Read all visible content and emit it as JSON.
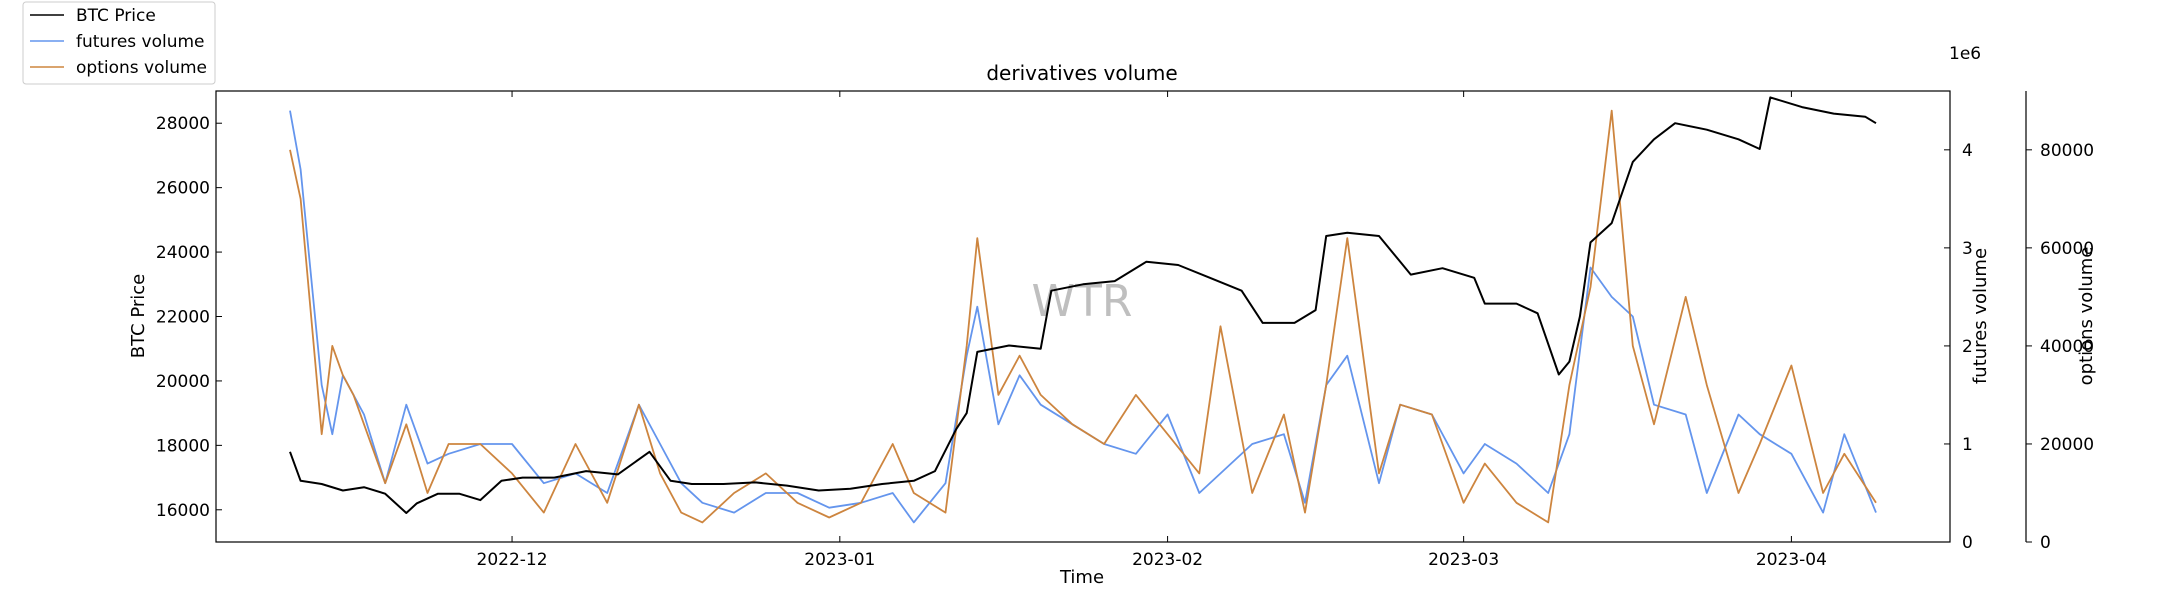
{
  "chart_data": {
    "type": "line",
    "title": "derivatives volume",
    "xlabel": "Time",
    "x_ticks": [
      "2022-12",
      "2023-01",
      "2023-02",
      "2023-03",
      "2023-04"
    ],
    "x_range": [
      "2022-11-03",
      "2023-04-16"
    ],
    "watermark": "WTR",
    "axes": {
      "price": {
        "label": "BTC Price",
        "ylim": [
          15000,
          29000
        ],
        "ticks": [
          16000,
          18000,
          20000,
          22000,
          24000,
          26000,
          28000
        ]
      },
      "futures": {
        "label": "futures volume",
        "ylim": [
          0,
          4600000
        ],
        "ticks": [
          0,
          1,
          2,
          3,
          4
        ],
        "scale_label": "1e6"
      },
      "options": {
        "label": "options volume",
        "ylim": [
          0,
          92000
        ],
        "ticks": [
          0,
          20000,
          40000,
          60000,
          80000
        ]
      }
    },
    "series": [
      {
        "name": "BTC Price",
        "axis": "price",
        "color": "#000000",
        "x": [
          "2022-11-10",
          "2022-11-11",
          "2022-11-13",
          "2022-11-15",
          "2022-11-17",
          "2022-11-19",
          "2022-11-21",
          "2022-11-22",
          "2022-11-24",
          "2022-11-26",
          "2022-11-28",
          "2022-11-30",
          "2022-12-02",
          "2022-12-05",
          "2022-12-08",
          "2022-12-11",
          "2022-12-14",
          "2022-12-16",
          "2022-12-18",
          "2022-12-21",
          "2022-12-24",
          "2022-12-27",
          "2022-12-30",
          "2023-01-02",
          "2023-01-05",
          "2023-01-08",
          "2023-01-10",
          "2023-01-12",
          "2023-01-13",
          "2023-01-14",
          "2023-01-17",
          "2023-01-20",
          "2023-01-21",
          "2023-01-24",
          "2023-01-27",
          "2023-01-30",
          "2023-02-02",
          "2023-02-05",
          "2023-02-08",
          "2023-02-10",
          "2023-02-13",
          "2023-02-15",
          "2023-02-16",
          "2023-02-18",
          "2023-02-21",
          "2023-02-24",
          "2023-02-27",
          "2023-03-02",
          "2023-03-03",
          "2023-03-06",
          "2023-03-08",
          "2023-03-10",
          "2023-03-11",
          "2023-03-12",
          "2023-03-13",
          "2023-03-15",
          "2023-03-17",
          "2023-03-19",
          "2023-03-21",
          "2023-03-24",
          "2023-03-27",
          "2023-03-29",
          "2023-03-30",
          "2023-04-02",
          "2023-04-05",
          "2023-04-08",
          "2023-04-09"
        ],
        "values": [
          17800,
          16900,
          16800,
          16600,
          16700,
          16500,
          15900,
          16200,
          16500,
          16500,
          16300,
          16900,
          17000,
          17000,
          17200,
          17100,
          17800,
          16900,
          16800,
          16800,
          16850,
          16750,
          16600,
          16650,
          16800,
          16900,
          17200,
          18500,
          19000,
          20900,
          21100,
          21000,
          22800,
          23000,
          23100,
          23700,
          23600,
          23200,
          22800,
          21800,
          21800,
          22200,
          24500,
          24600,
          24500,
          23300,
          23500,
          23200,
          22400,
          22400,
          22100,
          20200,
          20600,
          22000,
          24300,
          24900,
          26800,
          27500,
          28000,
          27800,
          27500,
          27200,
          28800,
          28500,
          28300,
          28200,
          28000
        ]
      },
      {
        "name": "futures volume",
        "axis": "futures",
        "color": "#6495ED",
        "x": [
          "2022-11-10",
          "2022-11-11",
          "2022-11-13",
          "2022-11-14",
          "2022-11-15",
          "2022-11-16",
          "2022-11-17",
          "2022-11-19",
          "2022-11-21",
          "2022-11-23",
          "2022-11-25",
          "2022-11-28",
          "2022-12-01",
          "2022-12-04",
          "2022-12-07",
          "2022-12-10",
          "2022-12-13",
          "2022-12-15",
          "2022-12-17",
          "2022-12-19",
          "2022-12-22",
          "2022-12-25",
          "2022-12-28",
          "2022-12-31",
          "2023-01-03",
          "2023-01-06",
          "2023-01-08",
          "2023-01-11",
          "2023-01-13",
          "2023-01-14",
          "2023-01-16",
          "2023-01-18",
          "2023-01-20",
          "2023-01-23",
          "2023-01-26",
          "2023-01-29",
          "2023-02-01",
          "2023-02-04",
          "2023-02-06",
          "2023-02-09",
          "2023-02-12",
          "2023-02-14",
          "2023-02-16",
          "2023-02-18",
          "2023-02-21",
          "2023-02-23",
          "2023-02-26",
          "2023-03-01",
          "2023-03-03",
          "2023-03-06",
          "2023-03-09",
          "2023-03-11",
          "2023-03-13",
          "2023-03-15",
          "2023-03-17",
          "2023-03-19",
          "2023-03-22",
          "2023-03-24",
          "2023-03-27",
          "2023-03-29",
          "2023-04-01",
          "2023-04-04",
          "2023-04-06",
          "2023-04-09"
        ],
        "values": [
          4400000,
          3800000,
          1600000,
          1100000,
          1700000,
          1500000,
          1300000,
          600000,
          1400000,
          800000,
          900000,
          1000000,
          1000000,
          600000,
          700000,
          500000,
          1400000,
          1000000,
          600000,
          400000,
          300000,
          500000,
          500000,
          350000,
          400000,
          500000,
          200000,
          600000,
          1900000,
          2400000,
          1200000,
          1700000,
          1400000,
          1200000,
          1000000,
          900000,
          1300000,
          500000,
          700000,
          1000000,
          1100000,
          400000,
          1600000,
          1900000,
          600000,
          1400000,
          1300000,
          700000,
          1000000,
          800000,
          500000,
          1100000,
          2800000,
          2500000,
          2300000,
          1400000,
          1300000,
          500000,
          1300000,
          1100000,
          900000,
          300000,
          1100000,
          300000
        ]
      },
      {
        "name": "options volume",
        "axis": "options",
        "color": "#CD853F",
        "x": [
          "2022-11-10",
          "2022-11-11",
          "2022-11-13",
          "2022-11-14",
          "2022-11-15",
          "2022-11-16",
          "2022-11-17",
          "2022-11-19",
          "2022-11-21",
          "2022-11-23",
          "2022-11-25",
          "2022-11-28",
          "2022-12-01",
          "2022-12-04",
          "2022-12-07",
          "2022-12-10",
          "2022-12-13",
          "2022-12-15",
          "2022-12-17",
          "2022-12-19",
          "2022-12-22",
          "2022-12-25",
          "2022-12-28",
          "2022-12-31",
          "2023-01-03",
          "2023-01-06",
          "2023-01-08",
          "2023-01-11",
          "2023-01-13",
          "2023-01-14",
          "2023-01-16",
          "2023-01-18",
          "2023-01-20",
          "2023-01-23",
          "2023-01-26",
          "2023-01-29",
          "2023-02-01",
          "2023-02-04",
          "2023-02-06",
          "2023-02-09",
          "2023-02-12",
          "2023-02-14",
          "2023-02-16",
          "2023-02-18",
          "2023-02-21",
          "2023-02-23",
          "2023-02-26",
          "2023-03-01",
          "2023-03-03",
          "2023-03-06",
          "2023-03-09",
          "2023-03-11",
          "2023-03-13",
          "2023-03-15",
          "2023-03-17",
          "2023-03-19",
          "2023-03-22",
          "2023-03-24",
          "2023-03-27",
          "2023-03-29",
          "2023-04-01",
          "2023-04-04",
          "2023-04-06",
          "2023-04-09"
        ],
        "values": [
          80000,
          70000,
          22000,
          40000,
          34000,
          30000,
          24000,
          12000,
          24000,
          10000,
          20000,
          20000,
          14000,
          6000,
          20000,
          8000,
          28000,
          14000,
          6000,
          4000,
          10000,
          14000,
          8000,
          5000,
          8000,
          20000,
          10000,
          6000,
          40000,
          62000,
          30000,
          38000,
          30000,
          24000,
          20000,
          30000,
          22000,
          14000,
          44000,
          10000,
          26000,
          6000,
          32000,
          62000,
          14000,
          28000,
          26000,
          8000,
          16000,
          8000,
          4000,
          32000,
          52000,
          88000,
          40000,
          24000,
          50000,
          32000,
          10000,
          20000,
          36000,
          10000,
          18000,
          8000
        ]
      }
    ]
  }
}
